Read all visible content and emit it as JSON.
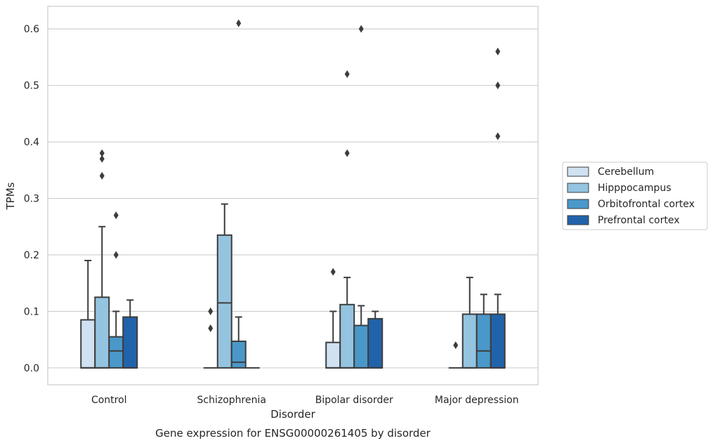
{
  "chart_data": {
    "type": "boxplot",
    "caption": "Gene expression for ENSG00000261405 by disorder",
    "xlabel": "Disorder",
    "ylabel": "TPMs",
    "ylim": [
      -0.03,
      0.64
    ],
    "yticks": [
      0.0,
      0.1,
      0.2,
      0.3,
      0.4,
      0.5,
      0.6
    ],
    "ytick_labels": [
      "0.0",
      "0.1",
      "0.2",
      "0.3",
      "0.4",
      "0.5",
      "0.6"
    ],
    "grid": "horizontal",
    "legend_position": "outside-right",
    "categories": [
      "Control",
      "Schizophrenia",
      "Bipolar disorder",
      "Major depression"
    ],
    "series": [
      {
        "name": "Cerebellum",
        "color": "#d0e1f2",
        "boxes": [
          {
            "min": 0.0,
            "q1": 0.0,
            "median": 0.0,
            "q3": 0.085,
            "max": 0.19,
            "outliers": []
          },
          {
            "min": 0.0,
            "q1": 0.0,
            "median": 0.0,
            "q3": 0.0,
            "max": 0.0,
            "outliers": [
              0.1,
              0.07
            ]
          },
          {
            "min": 0.0,
            "q1": 0.0,
            "median": 0.0,
            "q3": 0.045,
            "max": 0.1,
            "outliers": [
              0.17
            ]
          },
          {
            "min": 0.0,
            "q1": 0.0,
            "median": 0.0,
            "q3": 0.0,
            "max": 0.0,
            "outliers": [
              0.04
            ]
          }
        ]
      },
      {
        "name": "Hipppocampus",
        "color": "#94c4df",
        "boxes": [
          {
            "min": 0.0,
            "q1": 0.0,
            "median": 0.0,
            "q3": 0.125,
            "max": 0.25,
            "outliers": [
              0.38,
              0.37,
              0.34
            ]
          },
          {
            "min": 0.0,
            "q1": 0.0,
            "median": 0.115,
            "q3": 0.235,
            "max": 0.29,
            "outliers": []
          },
          {
            "min": 0.0,
            "q1": 0.0,
            "median": 0.0,
            "q3": 0.112,
            "max": 0.16,
            "outliers": [
              0.52,
              0.38
            ]
          },
          {
            "min": 0.0,
            "q1": 0.0,
            "median": 0.0,
            "q3": 0.095,
            "max": 0.16,
            "outliers": []
          }
        ]
      },
      {
        "name": "Orbitofrontal cortex",
        "color": "#4a98c9",
        "boxes": [
          {
            "min": 0.0,
            "q1": 0.0,
            "median": 0.03,
            "q3": 0.055,
            "max": 0.1,
            "outliers": [
              0.27,
              0.2
            ]
          },
          {
            "min": 0.0,
            "q1": 0.0,
            "median": 0.01,
            "q3": 0.047,
            "max": 0.09,
            "outliers": [
              0.61
            ]
          },
          {
            "min": 0.0,
            "q1": 0.0,
            "median": 0.0,
            "q3": 0.075,
            "max": 0.11,
            "outliers": [
              0.6
            ]
          },
          {
            "min": 0.0,
            "q1": 0.0,
            "median": 0.03,
            "q3": 0.095,
            "max": 0.13,
            "outliers": []
          }
        ]
      },
      {
        "name": "Prefrontal cortex",
        "color": "#2163aa",
        "boxes": [
          {
            "min": 0.0,
            "q1": 0.0,
            "median": 0.0,
            "q3": 0.09,
            "max": 0.12,
            "outliers": []
          },
          {
            "min": 0.0,
            "q1": 0.0,
            "median": 0.0,
            "q3": 0.0,
            "max": 0.0,
            "outliers": []
          },
          {
            "min": 0.0,
            "q1": 0.0,
            "median": 0.0,
            "q3": 0.087,
            "max": 0.1,
            "outliers": []
          },
          {
            "min": 0.0,
            "q1": 0.0,
            "median": 0.0,
            "q3": 0.095,
            "max": 0.13,
            "outliers": [
              0.56,
              0.5,
              0.41
            ]
          }
        ]
      }
    ]
  }
}
